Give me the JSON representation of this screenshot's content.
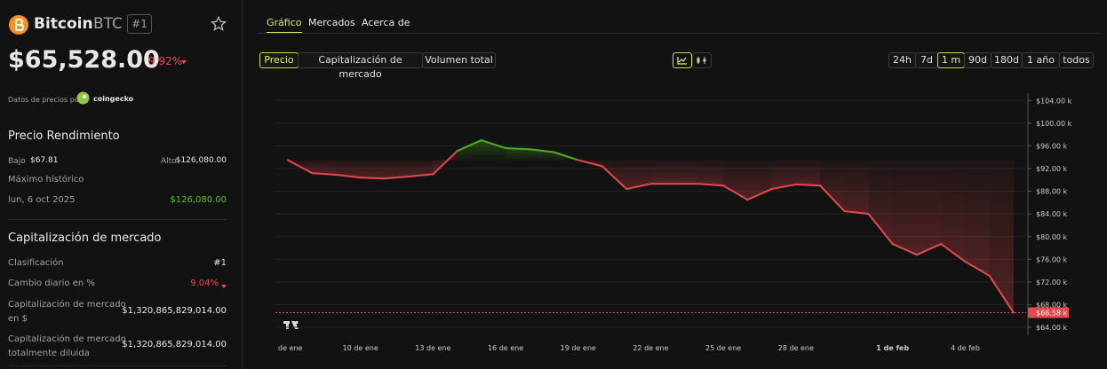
{
  "header": {
    "name": "Bitcoin",
    "symbol": "BTC",
    "rank": "#1",
    "price": "$65,528.00",
    "change": "9.92%",
    "source_prefix": "Datos de precios por",
    "source": "coingecko"
  },
  "performance": {
    "title": "Precio Rendimiento",
    "low_label": "Bajo",
    "low": "$67.81",
    "high_label": "Alto",
    "high": "$126,080.00",
    "ath_label": "Máximo histórico",
    "ath_date": "lun, 6 oct 2025",
    "ath": "$126,080.00"
  },
  "market": {
    "title": "Capitalización de mercado",
    "rows": [
      [
        "Clasificación",
        "#1"
      ],
      [
        "Cambio diario en %",
        "9.04%"
      ],
      [
        "Capitalización de mercado en $",
        "$1,320,865,829,014.00"
      ],
      [
        "Capitalización de mercado totalmente diluida",
        "$1,320,865,829,014.00"
      ]
    ]
  },
  "tabs": [
    "Gráfico",
    "Mercados",
    "Acerca de"
  ],
  "metrics": [
    "Precio",
    "Capitalización de mercado",
    "Volumen total"
  ],
  "ranges": [
    "24h",
    "7d",
    "1 m",
    "90d",
    "180d",
    "1 año",
    "todos"
  ],
  "chart_data": {
    "type": "line",
    "categories": [
      "de ene",
      null,
      null,
      "10 de ene",
      null,
      null,
      "13 de ene",
      null,
      null,
      "16 de ene",
      null,
      null,
      "19 de ene",
      null,
      null,
      "22 de ene",
      null,
      null,
      "25 de ene",
      null,
      null,
      "28 de ene",
      null,
      null,
      null,
      "1 de feb",
      null,
      null,
      "4 de feb",
      null,
      null
    ],
    "values": [
      93.5,
      91.2,
      90.9,
      90.4,
      90.25,
      90.6,
      91.0,
      95.1,
      97.0,
      95.6,
      95.4,
      94.9,
      93.5,
      92.4,
      88.4,
      89.3,
      89.3,
      89.3,
      89.0,
      86.5,
      88.4,
      89.2,
      89.0,
      84.5,
      84.0,
      78.7,
      76.8,
      78.7,
      75.6,
      73.1,
      66.58
    ],
    "value_labels": [
      null,
      null,
      null,
      null,
      null,
      null,
      null,
      null,
      null,
      null,
      null,
      null,
      null,
      null,
      null,
      null,
      null,
      null,
      null,
      null,
      null,
      null,
      null,
      null,
      null,
      null,
      null,
      null,
      null,
      null,
      "$66.58 k"
    ],
    "colors": {
      "up": "#4caf1d",
      "down": "#e5484d"
    },
    "ylim": [
      62.6,
      105.3
    ],
    "yticks": [
      {
        "value": 64,
        "label": "$64.00 k"
      },
      {
        "value": 68,
        "label": "$68.00 k"
      },
      {
        "value": 72,
        "label": "$72.00 k"
      },
      {
        "value": 76,
        "label": "$76.00 k"
      },
      {
        "value": 80,
        "label": "$80.00 k"
      },
      {
        "value": 84,
        "label": "$84.00 k"
      },
      {
        "value": 88,
        "label": "$88.00 k"
      },
      {
        "value": 92,
        "label": "$92.00 k"
      },
      {
        "value": 96,
        "label": "$96.00 k"
      },
      {
        "value": 100,
        "label": "$100.00 k"
      },
      {
        "value": 104,
        "label": "$104.00 k"
      }
    ],
    "grid": true
  }
}
